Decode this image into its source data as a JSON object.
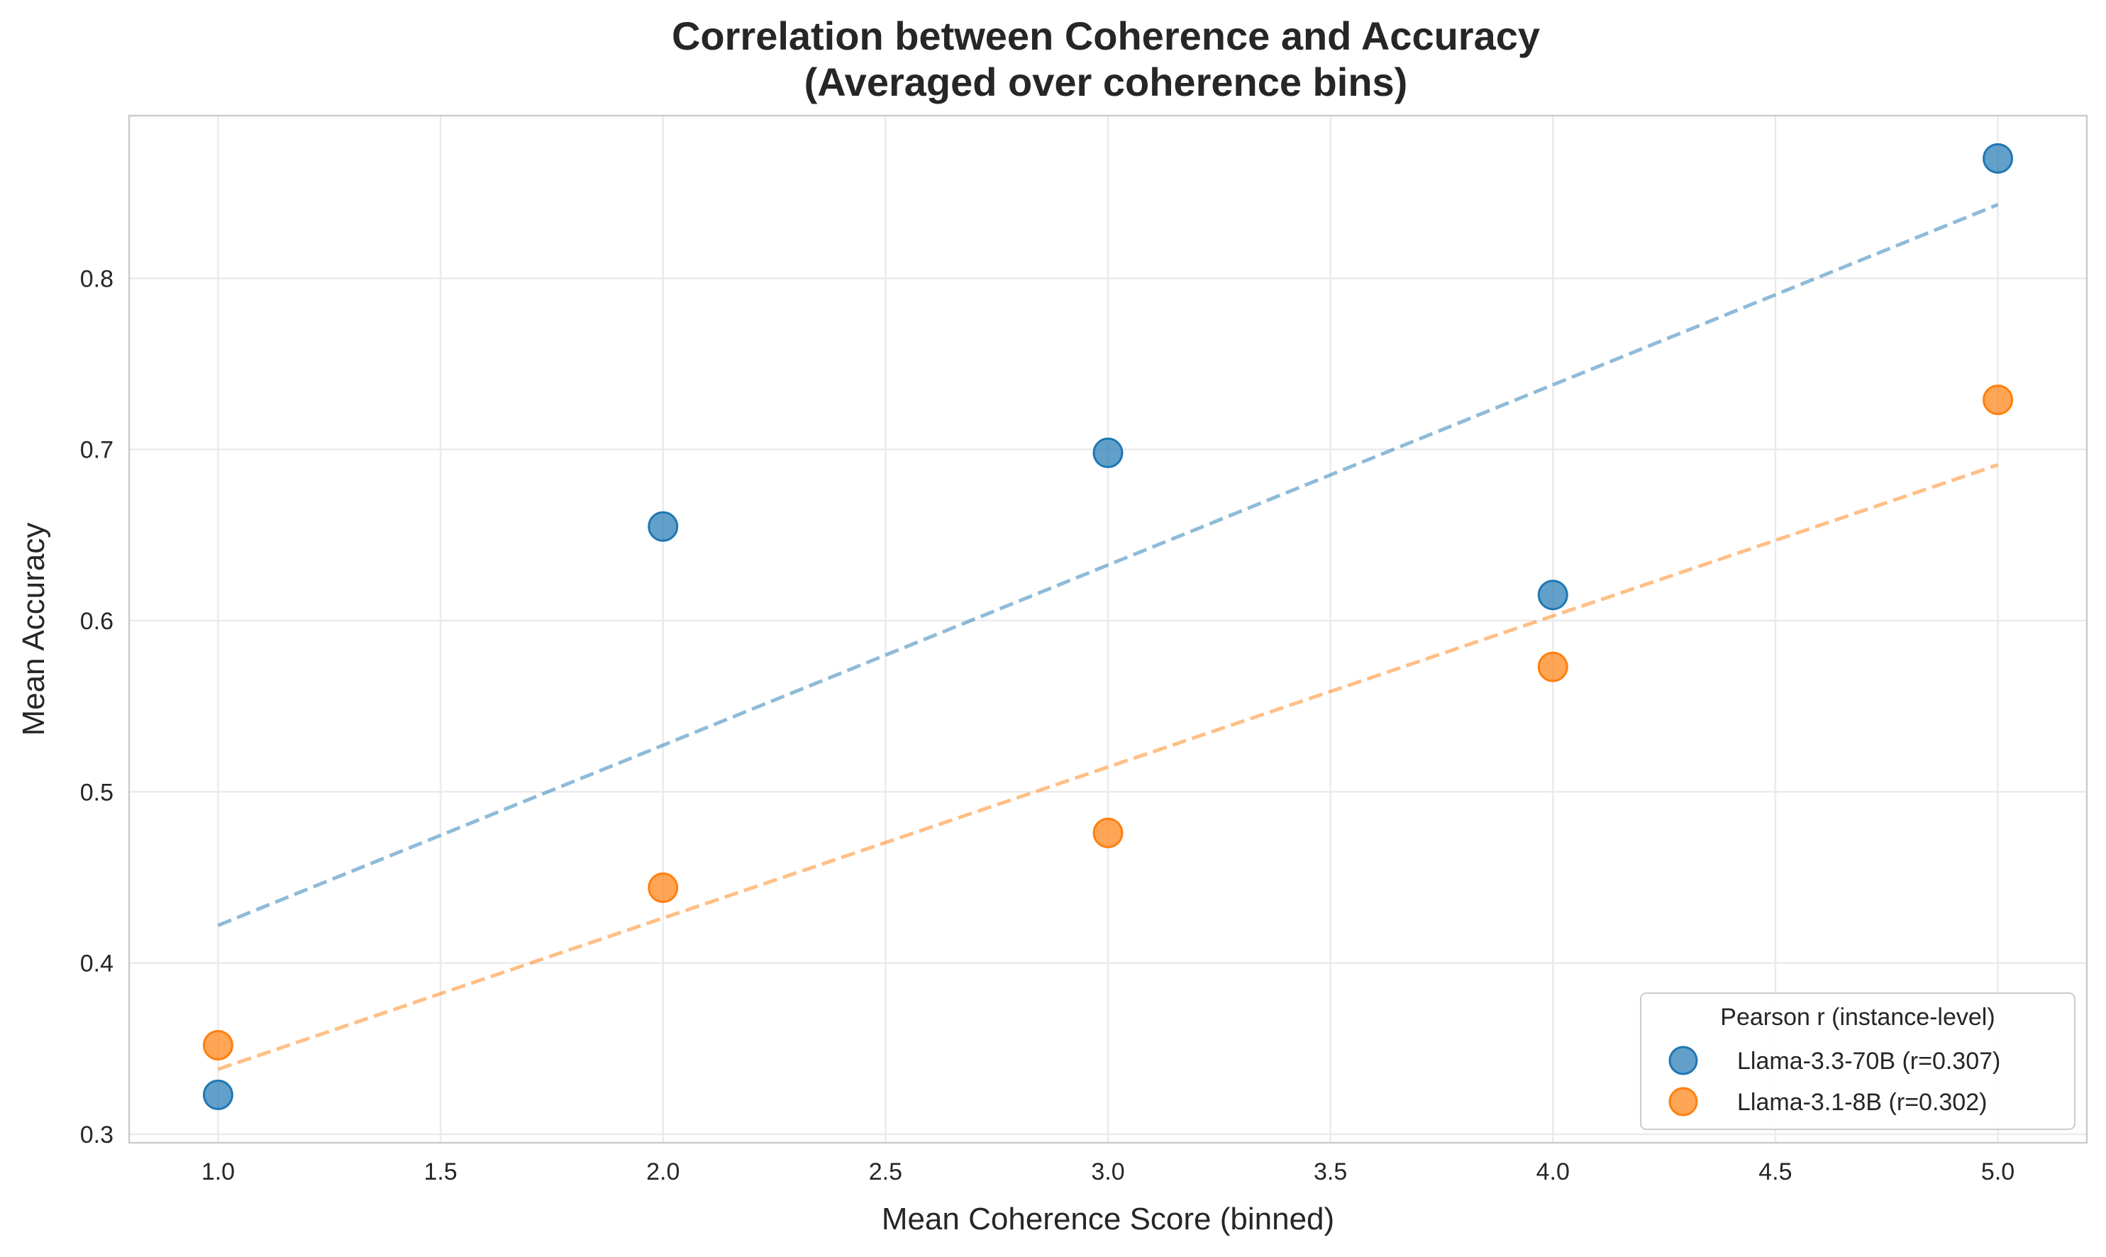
{
  "chart_data": {
    "type": "scatter",
    "title": "Correlation between Coherence and Accuracy",
    "subtitle": "(Averaged over coherence bins)",
    "xlabel": "Mean Coherence Score (binned)",
    "ylabel": "Mean Accuracy",
    "xlim": [
      0.8,
      5.2
    ],
    "ylim": [
      0.295,
      0.895
    ],
    "xticks": [
      1.0,
      1.5,
      2.0,
      2.5,
      3.0,
      3.5,
      4.0,
      4.5,
      5.0
    ],
    "xtick_labels": [
      "1.0",
      "1.5",
      "2.0",
      "2.5",
      "3.0",
      "3.5",
      "4.0",
      "4.5",
      "5.0"
    ],
    "yticks": [
      0.3,
      0.4,
      0.5,
      0.6,
      0.7,
      0.8
    ],
    "ytick_labels": [
      "0.3",
      "0.4",
      "0.5",
      "0.6",
      "0.7",
      "0.8"
    ],
    "grid": true,
    "legend": {
      "title": "Pearson r (instance-level)",
      "position": "lower-right"
    },
    "series": [
      {
        "name": "Llama-3.3-70B (r=0.307)",
        "color": "#1f77b4",
        "x": [
          1.0,
          2.0,
          3.0,
          4.0,
          5.0
        ],
        "y": [
          0.323,
          0.655,
          0.698,
          0.615,
          0.87
        ],
        "trend": {
          "x": [
            1.0,
            5.0
          ],
          "y": [
            0.422,
            0.843
          ]
        }
      },
      {
        "name": "Llama-3.1-8B (r=0.302)",
        "color": "#ff7f0e",
        "x": [
          1.0,
          2.0,
          3.0,
          4.0,
          5.0
        ],
        "y": [
          0.352,
          0.444,
          0.476,
          0.573,
          0.729
        ],
        "trend": {
          "x": [
            1.0,
            5.0
          ],
          "y": [
            0.338,
            0.691
          ]
        }
      }
    ]
  }
}
